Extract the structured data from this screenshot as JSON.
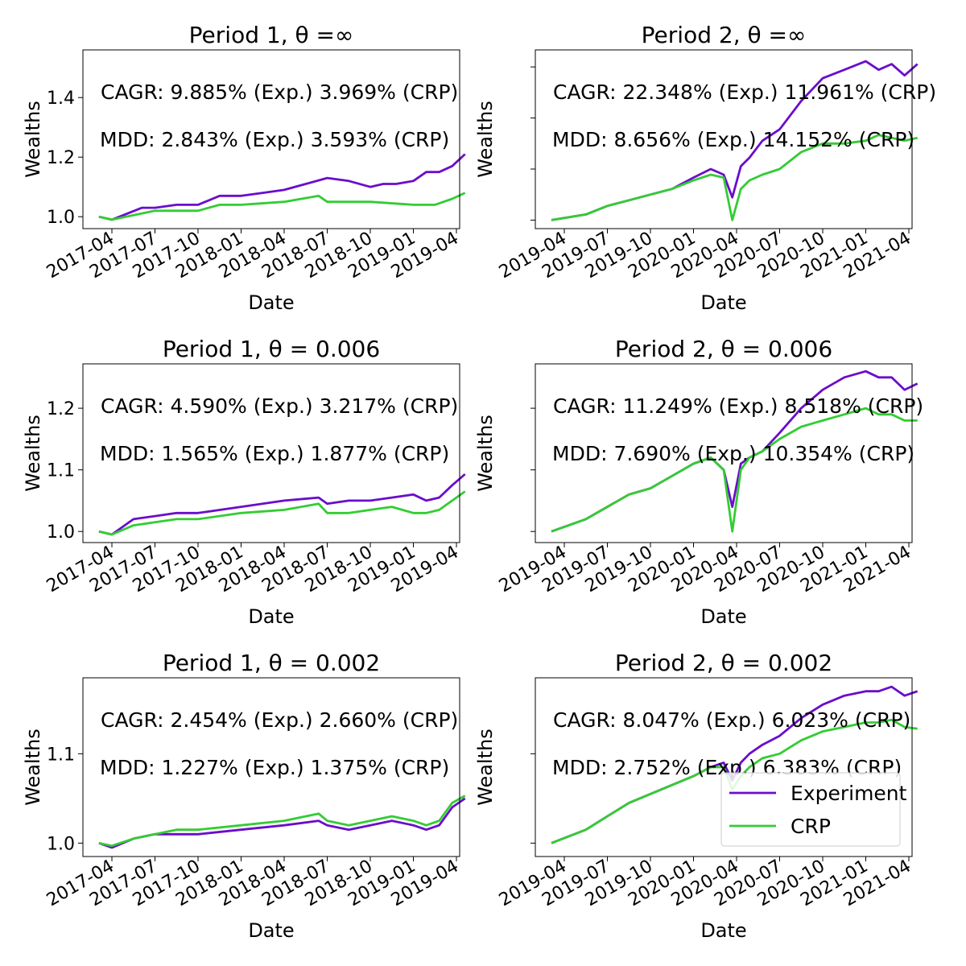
{
  "colors": {
    "experiment": "#6a0dcc",
    "crp": "#33cc33"
  },
  "legend": {
    "placement": "lower-right",
    "entries": [
      "Experiment",
      "CRP"
    ]
  },
  "chart_data": [
    {
      "type": "line",
      "title": "Period 1, θ =∞",
      "xlabel": "Date",
      "ylabel": "Wealths",
      "xticks": [
        "2017-04",
        "2017-07",
        "2017-10",
        "2018-01",
        "2018-04",
        "2018-07",
        "2018-10",
        "2019-01",
        "2019-04"
      ],
      "yticks": [
        "1.0",
        "1.2",
        "1.4"
      ],
      "ytick_values": [
        1.0,
        1.2,
        1.4
      ],
      "ylim": [
        0.96,
        1.56
      ],
      "annotations": [
        "CAGR: 9.885% (Exp.) 3.969% (CRP)",
        "MDD: 2.843% (Exp.) 3.593% (CRP)"
      ],
      "series": [
        {
          "name": "Experiment",
          "x": [
            -0.3,
            0.0,
            0.7,
            1.0,
            1.5,
            2.0,
            2.5,
            3.0,
            3.5,
            4.0,
            4.5,
            5.0,
            5.5,
            6.0,
            6.3,
            6.6,
            7.0,
            7.3,
            7.6,
            7.9,
            8.2
          ],
          "y": [
            1.0,
            0.99,
            1.03,
            1.03,
            1.04,
            1.04,
            1.07,
            1.07,
            1.08,
            1.09,
            1.11,
            1.13,
            1.12,
            1.1,
            1.11,
            1.11,
            1.12,
            1.15,
            1.15,
            1.17,
            1.21
          ]
        },
        {
          "name": "CRP",
          "x": [
            -0.3,
            0.0,
            1.0,
            2.0,
            2.5,
            3.0,
            4.0,
            4.8,
            5.0,
            5.5,
            6.0,
            7.0,
            7.5,
            7.9,
            8.2
          ],
          "y": [
            1.0,
            0.99,
            1.02,
            1.02,
            1.04,
            1.04,
            1.05,
            1.07,
            1.05,
            1.05,
            1.05,
            1.04,
            1.04,
            1.06,
            1.08
          ]
        }
      ]
    },
    {
      "type": "line",
      "title": "Period 2, θ =∞",
      "xlabel": "Date",
      "ylabel": "Wealths",
      "xticks": [
        "2019-04",
        "2019-07",
        "2019-10",
        "2020-01",
        "2020-04",
        "2020-07",
        "2020-10",
        "2021-01",
        "2021-04"
      ],
      "yticks": [
        "",
        "",
        "",
        ""
      ],
      "ytick_values": [
        0.96,
        1.14,
        1.32,
        1.5
      ],
      "ylim": [
        0.93,
        1.56
      ],
      "annotations": [
        "CAGR: 22.348% (Exp.) 11.961% (CRP)",
        "MDD: 8.656% (Exp.) 14.152% (CRP)"
      ],
      "series": [
        {
          "name": "Experiment",
          "x": [
            -0.3,
            0.5,
            1.0,
            1.5,
            2.0,
            2.5,
            3.0,
            3.4,
            3.7,
            3.9,
            4.1,
            4.3,
            4.6,
            5.0,
            5.5,
            6.0,
            6.5,
            7.0,
            7.3,
            7.6,
            7.9,
            8.2
          ],
          "y": [
            0.96,
            0.98,
            1.01,
            1.03,
            1.05,
            1.07,
            1.11,
            1.14,
            1.12,
            1.04,
            1.15,
            1.18,
            1.24,
            1.28,
            1.38,
            1.46,
            1.49,
            1.52,
            1.49,
            1.51,
            1.47,
            1.51
          ]
        },
        {
          "name": "CRP",
          "x": [
            -0.3,
            0.5,
            1.0,
            1.5,
            2.0,
            2.5,
            3.0,
            3.4,
            3.7,
            3.9,
            4.1,
            4.3,
            4.6,
            5.0,
            5.5,
            6.0,
            6.5,
            7.0,
            7.3,
            7.6,
            7.9,
            8.2
          ],
          "y": [
            0.96,
            0.98,
            1.01,
            1.03,
            1.05,
            1.07,
            1.1,
            1.12,
            1.11,
            0.96,
            1.07,
            1.1,
            1.12,
            1.14,
            1.2,
            1.23,
            1.23,
            1.24,
            1.26,
            1.25,
            1.24,
            1.25
          ]
        }
      ]
    },
    {
      "type": "line",
      "title": "Period 1, θ = 0.006",
      "xlabel": "Date",
      "ylabel": "Wealths",
      "xticks": [
        "2017-04",
        "2017-07",
        "2017-10",
        "2018-01",
        "2018-04",
        "2018-07",
        "2018-10",
        "2019-01",
        "2019-04"
      ],
      "yticks": [
        "1.0",
        "1.1",
        "1.2"
      ],
      "ytick_values": [
        1.0,
        1.1,
        1.2
      ],
      "ylim": [
        0.982,
        1.272
      ],
      "annotations": [
        "CAGR: 4.590% (Exp.) 3.217% (CRP)",
        "MDD: 1.565% (Exp.) 1.877% (CRP)"
      ],
      "series": [
        {
          "name": "Experiment",
          "x": [
            -0.3,
            0.0,
            0.5,
            1.0,
            1.5,
            2.0,
            3.0,
            4.0,
            4.8,
            5.0,
            5.5,
            6.0,
            6.5,
            7.0,
            7.3,
            7.6,
            7.9,
            8.2
          ],
          "y": [
            1.0,
            0.995,
            1.02,
            1.025,
            1.03,
            1.03,
            1.04,
            1.05,
            1.055,
            1.045,
            1.05,
            1.05,
            1.055,
            1.06,
            1.05,
            1.055,
            1.075,
            1.093
          ]
        },
        {
          "name": "CRP",
          "x": [
            -0.3,
            0.0,
            0.5,
            1.0,
            1.5,
            2.0,
            3.0,
            4.0,
            4.8,
            5.0,
            5.5,
            6.0,
            6.5,
            7.0,
            7.3,
            7.6,
            7.9,
            8.2
          ],
          "y": [
            1.0,
            0.995,
            1.01,
            1.015,
            1.02,
            1.02,
            1.03,
            1.035,
            1.045,
            1.03,
            1.03,
            1.035,
            1.04,
            1.03,
            1.03,
            1.035,
            1.05,
            1.065
          ]
        }
      ]
    },
    {
      "type": "line",
      "title": "Period 2, θ = 0.006",
      "xlabel": "Date",
      "ylabel": "Wealths",
      "xticks": [
        "2019-04",
        "2019-07",
        "2019-10",
        "2020-01",
        "2020-04",
        "2020-07",
        "2020-10",
        "2021-01",
        "2021-04"
      ],
      "yticks": [
        "",
        "",
        ""
      ],
      "ytick_values": [
        1.0,
        1.1,
        1.2
      ],
      "ylim": [
        0.982,
        1.272
      ],
      "annotations": [
        "CAGR: 11.249% (Exp.) 8.518% (CRP)",
        "MDD: 7.690% (Exp.) 10.354% (CRP)"
      ],
      "series": [
        {
          "name": "Experiment",
          "x": [
            -0.3,
            0.5,
            1.0,
            1.5,
            2.0,
            2.5,
            3.0,
            3.4,
            3.7,
            3.9,
            4.1,
            4.3,
            4.6,
            5.0,
            5.5,
            6.0,
            6.5,
            7.0,
            7.3,
            7.6,
            7.9,
            8.2
          ],
          "y": [
            1.0,
            1.02,
            1.04,
            1.06,
            1.07,
            1.09,
            1.11,
            1.12,
            1.1,
            1.04,
            1.11,
            1.12,
            1.13,
            1.16,
            1.2,
            1.23,
            1.25,
            1.26,
            1.25,
            1.25,
            1.23,
            1.24
          ]
        },
        {
          "name": "CRP",
          "x": [
            -0.3,
            0.5,
            1.0,
            1.5,
            2.0,
            2.5,
            3.0,
            3.4,
            3.7,
            3.9,
            4.1,
            4.3,
            4.6,
            5.0,
            5.5,
            6.0,
            6.5,
            7.0,
            7.3,
            7.6,
            7.9,
            8.2
          ],
          "y": [
            1.0,
            1.02,
            1.04,
            1.06,
            1.07,
            1.09,
            1.11,
            1.12,
            1.1,
            1.0,
            1.1,
            1.12,
            1.13,
            1.15,
            1.17,
            1.18,
            1.19,
            1.2,
            1.19,
            1.19,
            1.18,
            1.18
          ]
        }
      ]
    },
    {
      "type": "line",
      "title": "Period 1, θ = 0.002",
      "xlabel": "Date",
      "ylabel": "Wealths",
      "xticks": [
        "2017-04",
        "2017-07",
        "2017-10",
        "2018-01",
        "2018-04",
        "2018-07",
        "2018-10",
        "2019-01",
        "2019-04"
      ],
      "yticks": [
        "1.0",
        "1.1"
      ],
      "ytick_values": [
        1.0,
        1.1
      ],
      "ylim": [
        0.985,
        1.185
      ],
      "annotations": [
        "CAGR: 2.454% (Exp.) 2.660% (CRP)",
        "MDD: 1.227% (Exp.) 1.375% (CRP)"
      ],
      "series": [
        {
          "name": "Experiment",
          "x": [
            -0.3,
            0.0,
            0.5,
            1.0,
            1.5,
            2.0,
            3.0,
            4.0,
            4.8,
            5.0,
            5.5,
            6.0,
            6.5,
            7.0,
            7.3,
            7.6,
            7.9,
            8.2
          ],
          "y": [
            1.0,
            0.995,
            1.005,
            1.01,
            1.01,
            1.01,
            1.015,
            1.02,
            1.025,
            1.02,
            1.015,
            1.02,
            1.025,
            1.02,
            1.015,
            1.02,
            1.04,
            1.05
          ]
        },
        {
          "name": "CRP",
          "x": [
            -0.3,
            0.0,
            0.5,
            1.0,
            1.5,
            2.0,
            3.0,
            4.0,
            4.8,
            5.0,
            5.5,
            6.0,
            6.5,
            7.0,
            7.3,
            7.6,
            7.9,
            8.2
          ],
          "y": [
            1.0,
            0.997,
            1.005,
            1.01,
            1.015,
            1.015,
            1.02,
            1.025,
            1.033,
            1.025,
            1.02,
            1.025,
            1.03,
            1.025,
            1.02,
            1.025,
            1.045,
            1.053
          ]
        }
      ]
    },
    {
      "type": "line",
      "title": "Period 2, θ = 0.002",
      "xlabel": "Date",
      "ylabel": "Wealths",
      "xticks": [
        "2019-04",
        "2019-07",
        "2019-10",
        "2020-01",
        "2020-04",
        "2020-07",
        "2020-10",
        "2021-01",
        "2021-04"
      ],
      "yticks": [
        "",
        ""
      ],
      "ytick_values": [
        1.0,
        1.1
      ],
      "ylim": [
        0.985,
        1.185
      ],
      "annotations": [
        "CAGR: 8.047% (Exp.) 6.023% (CRP)",
        "MDD: 2.752% (Exp.) 6.383% (CRP)"
      ],
      "series": [
        {
          "name": "Experiment",
          "x": [
            -0.3,
            0.5,
            1.0,
            1.5,
            2.0,
            2.5,
            3.0,
            3.4,
            3.7,
            3.9,
            4.1,
            4.3,
            4.6,
            5.0,
            5.5,
            6.0,
            6.5,
            7.0,
            7.3,
            7.6,
            7.9,
            8.2
          ],
          "y": [
            1.0,
            1.015,
            1.03,
            1.045,
            1.055,
            1.065,
            1.075,
            1.085,
            1.09,
            1.07,
            1.09,
            1.1,
            1.11,
            1.12,
            1.14,
            1.155,
            1.165,
            1.17,
            1.17,
            1.175,
            1.165,
            1.17
          ]
        },
        {
          "name": "CRP",
          "x": [
            -0.3,
            0.5,
            1.0,
            1.5,
            2.0,
            2.5,
            3.0,
            3.4,
            3.7,
            3.9,
            4.1,
            4.3,
            4.6,
            5.0,
            5.5,
            6.0,
            6.5,
            7.0,
            7.3,
            7.6,
            7.9,
            8.2
          ],
          "y": [
            1.0,
            1.015,
            1.03,
            1.045,
            1.055,
            1.065,
            1.075,
            1.085,
            1.085,
            1.06,
            1.075,
            1.085,
            1.095,
            1.1,
            1.115,
            1.125,
            1.13,
            1.135,
            1.135,
            1.138,
            1.13,
            1.128
          ]
        }
      ]
    }
  ]
}
